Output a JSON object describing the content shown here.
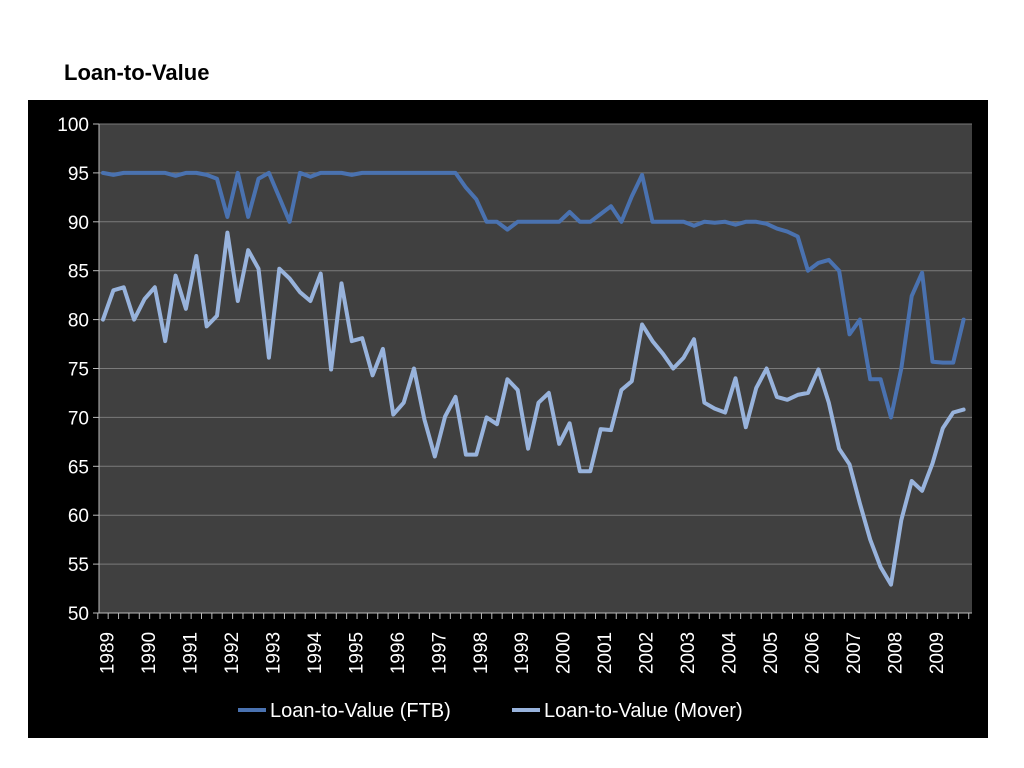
{
  "page": {
    "title": "Loan-to-Value"
  },
  "chart_data": {
    "type": "line",
    "title": "",
    "xlabel": "",
    "ylabel": "",
    "ylim": [
      50,
      100
    ],
    "yticks": [
      "50",
      "55",
      "60",
      "65",
      "70",
      "75",
      "80",
      "85",
      "90",
      "95",
      "100"
    ],
    "xticks": [
      "1989",
      "1990",
      "1991",
      "1992",
      "1993",
      "1994",
      "1995",
      "1996",
      "1997",
      "1998",
      "1999",
      "2000",
      "2001",
      "2002",
      "2003",
      "2004",
      "2005",
      "2006",
      "2007",
      "2008",
      "2009"
    ],
    "periods_per_year": 4,
    "grid": true,
    "legend_position": "bottom",
    "colors": {
      "ftb": "#4a72b0",
      "mover": "#98b3dc",
      "plot_bg": "#404040",
      "frame_bg": "#000000",
      "grid": "#7a7a7a"
    },
    "series": [
      {
        "name": "Loan-to-Value (FTB)",
        "values": [
          95,
          94.8,
          95,
          95,
          95,
          95,
          95,
          94.7,
          95,
          95,
          94.8,
          94.4,
          90.5,
          95,
          90.5,
          94.4,
          95,
          92.5,
          90,
          95,
          94.6,
          95,
          95,
          95,
          94.8,
          95,
          95,
          95,
          95,
          95,
          95,
          95,
          95,
          95,
          95,
          93.5,
          92.3,
          90,
          90,
          89.2,
          90,
          90,
          90,
          90,
          90,
          91,
          90,
          90,
          90.8,
          91.6,
          90,
          92.6,
          94.8,
          90,
          90,
          90,
          90,
          89.6,
          90,
          89.9,
          90,
          89.7,
          90,
          90,
          89.8,
          89.3,
          89,
          88.5,
          85,
          85.8,
          86.1,
          85,
          78.5,
          80,
          73.9,
          73.9,
          70,
          75,
          82.4,
          84.8,
          75.7,
          75.6,
          75.6,
          80
        ]
      },
      {
        "name": "Loan-to-Value (Mover)",
        "values": [
          80,
          83,
          83.3,
          80,
          82.1,
          83.3,
          77.8,
          84.5,
          81.1,
          86.5,
          79.3,
          80.4,
          88.9,
          81.9,
          87.1,
          85.2,
          76.1,
          85.2,
          84.2,
          82.8,
          81.9,
          84.7,
          74.9,
          83.7,
          77.8,
          78.1,
          74.3,
          77,
          70.3,
          71.5,
          75,
          69.8,
          66,
          70.1,
          72.1,
          66.2,
          66.2,
          70,
          69.3,
          73.9,
          72.8,
          66.8,
          71.5,
          72.5,
          67.3,
          69.4,
          64.5,
          64.5,
          68.8,
          68.7,
          72.8,
          73.7,
          79.5,
          77.8,
          76.5,
          75,
          76.1,
          78,
          71.5,
          70.9,
          70.5,
          74,
          69,
          73,
          75,
          72.1,
          71.8,
          72.3,
          72.5,
          74.9,
          71.5,
          66.8,
          65.2,
          61.2,
          57.5,
          54.7,
          52.9,
          59.5,
          63.5,
          62.5,
          65.3,
          68.9,
          70.5,
          70.8
        ]
      }
    ]
  }
}
